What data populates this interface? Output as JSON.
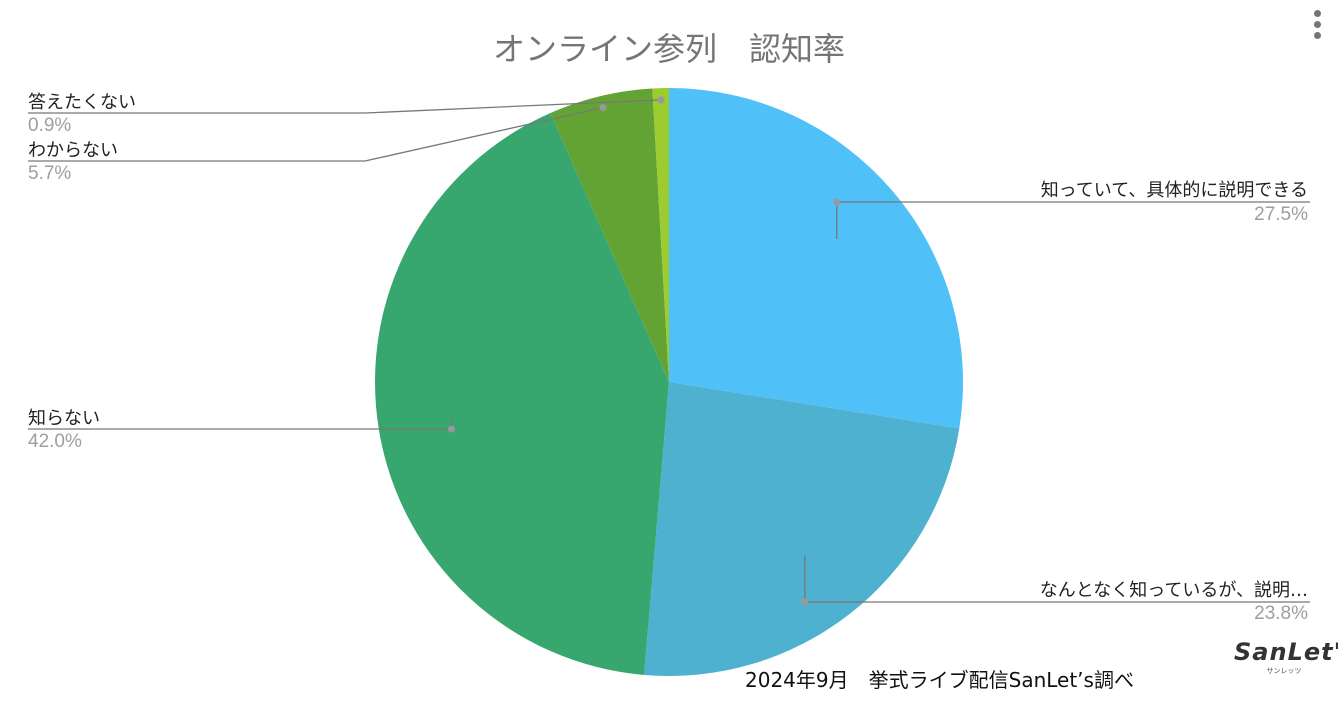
{
  "chart_data": {
    "type": "pie",
    "title": "オンライン参列　認知率",
    "slices": [
      {
        "label": "知っていて、具体的に説明できる",
        "value": 27.5,
        "display": "27.5%",
        "color": "#4fc1f8"
      },
      {
        "label": "なんとなく知っているが、説明…",
        "value": 23.8,
        "display": "23.8%",
        "color": "#4eb1d0"
      },
      {
        "label": "知らない",
        "value": 42.0,
        "display": "42.0%",
        "color": "#38a76f"
      },
      {
        "label": "わからない",
        "value": 5.7,
        "display": "5.7%",
        "color": "#63a334"
      },
      {
        "label": "答えたくない",
        "value": 0.9,
        "display": "0.9%",
        "color": "#9ccc30"
      }
    ],
    "start_angle": "top",
    "direction": "clockwise"
  },
  "footer": {
    "note": "2024年9月　挙式ライブ配信SanLet’s調べ"
  },
  "logo": {
    "text": "SanLet's",
    "sub": "サンレッツ"
  }
}
